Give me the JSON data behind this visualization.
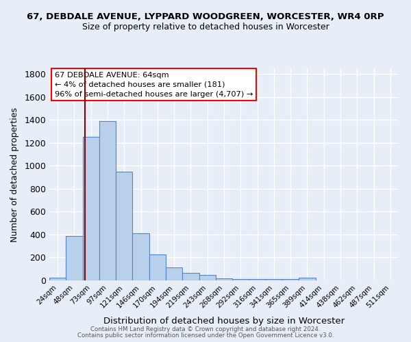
{
  "title": "67, DEBDALE AVENUE, LYPPARD WOODGREEN, WORCESTER, WR4 0RP",
  "subtitle": "Size of property relative to detached houses in Worcester",
  "xlabel": "Distribution of detached houses by size in Worcester",
  "ylabel": "Number of detached properties",
  "categories": [
    "24sqm",
    "48sqm",
    "73sqm",
    "97sqm",
    "121sqm",
    "146sqm",
    "170sqm",
    "194sqm",
    "219sqm",
    "243sqm",
    "268sqm",
    "292sqm",
    "316sqm",
    "341sqm",
    "365sqm",
    "389sqm",
    "414sqm",
    "438sqm",
    "462sqm",
    "487sqm",
    "511sqm"
  ],
  "values": [
    25,
    390,
    1255,
    1390,
    950,
    410,
    225,
    115,
    65,
    50,
    18,
    10,
    10,
    12,
    10,
    22,
    0,
    0,
    0,
    0,
    0
  ],
  "bar_color": "#b8d0ea",
  "bar_edge_color": "#5585c5",
  "bg_color": "#e8eef8",
  "grid_color": "#ffffff",
  "annotation_line1": "67 DEBDALE AVENUE: 64sqm",
  "annotation_line2": "← 4% of detached houses are smaller (181)",
  "annotation_line3": "96% of semi-detached houses are larger (4,707) →",
  "ylim": [
    0,
    1850
  ],
  "yticks": [
    0,
    200,
    400,
    600,
    800,
    1000,
    1200,
    1400,
    1600,
    1800
  ],
  "footer_line1": "Contains HM Land Registry data © Crown copyright and database right 2024.",
  "footer_line2": "Contains public sector information licensed under the Open Government Licence v3.0."
}
